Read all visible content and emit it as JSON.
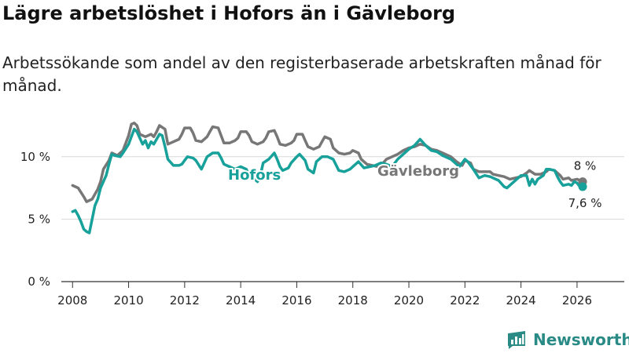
{
  "title": "Lägre arbetslöshet i Hofors än i Gävleborg",
  "subtitle": "Arbetssökande som andel av den registerbaserade arbetskraften månad för månad.",
  "brand": {
    "name": "Newsworthy",
    "logo": "bar-chart-logo-icon",
    "color": "#2a8a86"
  },
  "chart_data": {
    "type": "line",
    "title": "Lägre arbetslöshet i Hofors än i Gävleborg",
    "xlabel": "",
    "ylabel": "",
    "xlim": [
      2007.6,
      2026.9
    ],
    "ylim": [
      0,
      13
    ],
    "y_ticks": [
      0,
      5,
      10
    ],
    "y_tick_labels": [
      "0 %",
      "5 %",
      "10 %"
    ],
    "x_ticks": [
      2008,
      2010,
      2012,
      2014,
      2016,
      2018,
      2020,
      2022,
      2024,
      2026
    ],
    "x_tick_labels": [
      "2008",
      "2010",
      "2012",
      "2014",
      "2016",
      "2018",
      "2020",
      "2022",
      "2024",
      "2026"
    ],
    "grid": true,
    "series": [
      {
        "name": "Gävleborg",
        "color": "#777777",
        "label": "Gävleborg",
        "end_label": "8 %",
        "points": [
          [
            2008.0,
            7.7
          ],
          [
            2008.2,
            7.5
          ],
          [
            2008.4,
            6.8
          ],
          [
            2008.5,
            6.4
          ],
          [
            2008.7,
            6.6
          ],
          [
            2008.9,
            7.4
          ],
          [
            2009.0,
            8.0
          ],
          [
            2009.1,
            9.0
          ],
          [
            2009.3,
            9.7
          ],
          [
            2009.4,
            10.3
          ],
          [
            2009.6,
            10.1
          ],
          [
            2009.8,
            10.5
          ],
          [
            2009.9,
            11.1
          ],
          [
            2010.0,
            11.7
          ],
          [
            2010.1,
            12.6
          ],
          [
            2010.2,
            12.7
          ],
          [
            2010.3,
            12.5
          ],
          [
            2010.4,
            11.8
          ],
          [
            2010.6,
            11.6
          ],
          [
            2010.8,
            11.8
          ],
          [
            2010.9,
            11.6
          ],
          [
            2011.0,
            12.0
          ],
          [
            2011.1,
            12.5
          ],
          [
            2011.3,
            12.2
          ],
          [
            2011.4,
            11.0
          ],
          [
            2011.6,
            11.2
          ],
          [
            2011.8,
            11.4
          ],
          [
            2011.9,
            11.8
          ],
          [
            2012.0,
            12.3
          ],
          [
            2012.2,
            12.3
          ],
          [
            2012.3,
            11.9
          ],
          [
            2012.4,
            11.3
          ],
          [
            2012.6,
            11.2
          ],
          [
            2012.8,
            11.6
          ],
          [
            2012.9,
            12.0
          ],
          [
            2013.0,
            12.4
          ],
          [
            2013.2,
            12.3
          ],
          [
            2013.3,
            11.7
          ],
          [
            2013.4,
            11.1
          ],
          [
            2013.6,
            11.1
          ],
          [
            2013.8,
            11.3
          ],
          [
            2013.9,
            11.5
          ],
          [
            2014.0,
            12.0
          ],
          [
            2014.2,
            12.0
          ],
          [
            2014.3,
            11.7
          ],
          [
            2014.4,
            11.2
          ],
          [
            2014.6,
            11.0
          ],
          [
            2014.8,
            11.2
          ],
          [
            2014.9,
            11.5
          ],
          [
            2015.0,
            12.0
          ],
          [
            2015.2,
            12.1
          ],
          [
            2015.3,
            11.6
          ],
          [
            2015.4,
            11.0
          ],
          [
            2015.6,
            10.9
          ],
          [
            2015.8,
            11.1
          ],
          [
            2015.9,
            11.3
          ],
          [
            2016.0,
            11.8
          ],
          [
            2016.2,
            11.8
          ],
          [
            2016.3,
            11.3
          ],
          [
            2016.4,
            10.8
          ],
          [
            2016.6,
            10.6
          ],
          [
            2016.8,
            10.8
          ],
          [
            2016.9,
            11.2
          ],
          [
            2017.0,
            11.6
          ],
          [
            2017.2,
            11.4
          ],
          [
            2017.3,
            10.7
          ],
          [
            2017.5,
            10.3
          ],
          [
            2017.7,
            10.2
          ],
          [
            2017.9,
            10.3
          ],
          [
            2018.0,
            10.5
          ],
          [
            2018.2,
            10.3
          ],
          [
            2018.3,
            9.8
          ],
          [
            2018.5,
            9.4
          ],
          [
            2018.7,
            9.3
          ],
          [
            2018.9,
            9.2
          ],
          [
            2019.0,
            9.3
          ],
          [
            2019.2,
            9.8
          ],
          [
            2019.4,
            10.0
          ],
          [
            2019.6,
            10.2
          ],
          [
            2019.8,
            10.5
          ],
          [
            2020.0,
            10.7
          ],
          [
            2020.2,
            10.8
          ],
          [
            2020.4,
            11.0
          ],
          [
            2020.6,
            10.9
          ],
          [
            2020.8,
            10.6
          ],
          [
            2021.0,
            10.5
          ],
          [
            2021.2,
            10.3
          ],
          [
            2021.5,
            10.0
          ],
          [
            2021.7,
            9.6
          ],
          [
            2021.9,
            9.3
          ],
          [
            2022.0,
            9.7
          ],
          [
            2022.2,
            9.5
          ],
          [
            2022.3,
            9.0
          ],
          [
            2022.5,
            8.8
          ],
          [
            2022.7,
            8.8
          ],
          [
            2022.9,
            8.8
          ],
          [
            2023.0,
            8.6
          ],
          [
            2023.2,
            8.5
          ],
          [
            2023.4,
            8.4
          ],
          [
            2023.6,
            8.2
          ],
          [
            2023.8,
            8.3
          ],
          [
            2024.0,
            8.4
          ],
          [
            2024.2,
            8.7
          ],
          [
            2024.3,
            8.9
          ],
          [
            2024.5,
            8.6
          ],
          [
            2024.7,
            8.6
          ],
          [
            2024.9,
            8.8
          ],
          [
            2025.0,
            9.0
          ],
          [
            2025.2,
            8.9
          ],
          [
            2025.3,
            8.7
          ],
          [
            2025.4,
            8.5
          ],
          [
            2025.5,
            8.2
          ],
          [
            2025.7,
            8.3
          ],
          [
            2025.8,
            8.1
          ],
          [
            2026.0,
            8.2
          ],
          [
            2026.1,
            8.1
          ],
          [
            2026.2,
            8.0
          ]
        ]
      },
      {
        "name": "Hofors",
        "color": "#17a19a",
        "label": "Hofors",
        "end_label": "7,6 %",
        "points": [
          [
            2008.0,
            5.6
          ],
          [
            2008.1,
            5.7
          ],
          [
            2008.2,
            5.3
          ],
          [
            2008.3,
            4.8
          ],
          [
            2008.4,
            4.2
          ],
          [
            2008.5,
            4.0
          ],
          [
            2008.6,
            3.9
          ],
          [
            2008.7,
            5.0
          ],
          [
            2008.8,
            6.1
          ],
          [
            2008.9,
            6.6
          ],
          [
            2009.0,
            7.5
          ],
          [
            2009.2,
            8.5
          ],
          [
            2009.3,
            9.4
          ],
          [
            2009.4,
            10.2
          ],
          [
            2009.5,
            10.1
          ],
          [
            2009.7,
            10.0
          ],
          [
            2009.8,
            10.3
          ],
          [
            2010.0,
            11.0
          ],
          [
            2010.1,
            11.6
          ],
          [
            2010.2,
            12.2
          ],
          [
            2010.3,
            12.0
          ],
          [
            2010.4,
            11.5
          ],
          [
            2010.5,
            11.0
          ],
          [
            2010.6,
            11.3
          ],
          [
            2010.7,
            10.7
          ],
          [
            2010.8,
            11.2
          ],
          [
            2010.9,
            11.0
          ],
          [
            2011.1,
            11.8
          ],
          [
            2011.2,
            11.7
          ],
          [
            2011.3,
            10.8
          ],
          [
            2011.4,
            9.8
          ],
          [
            2011.6,
            9.3
          ],
          [
            2011.8,
            9.3
          ],
          [
            2011.9,
            9.4
          ],
          [
            2012.0,
            9.7
          ],
          [
            2012.1,
            10.0
          ],
          [
            2012.3,
            9.9
          ],
          [
            2012.4,
            9.7
          ],
          [
            2012.6,
            9.0
          ],
          [
            2012.8,
            10.0
          ],
          [
            2013.0,
            10.3
          ],
          [
            2013.2,
            10.3
          ],
          [
            2013.3,
            9.9
          ],
          [
            2013.4,
            9.4
          ],
          [
            2013.6,
            9.2
          ],
          [
            2013.8,
            9.0
          ],
          [
            2014.0,
            9.2
          ],
          [
            2014.2,
            9.0
          ],
          [
            2014.3,
            8.5
          ],
          [
            2014.5,
            8.2
          ],
          [
            2014.6,
            8.0
          ],
          [
            2014.7,
            8.5
          ],
          [
            2014.8,
            9.5
          ],
          [
            2015.0,
            9.8
          ],
          [
            2015.2,
            10.3
          ],
          [
            2015.3,
            9.8
          ],
          [
            2015.4,
            9.2
          ],
          [
            2015.5,
            8.9
          ],
          [
            2015.7,
            9.1
          ],
          [
            2015.8,
            9.5
          ],
          [
            2016.0,
            10.0
          ],
          [
            2016.1,
            10.2
          ],
          [
            2016.3,
            9.7
          ],
          [
            2016.4,
            9.0
          ],
          [
            2016.6,
            8.7
          ],
          [
            2016.7,
            9.6
          ],
          [
            2016.9,
            10.0
          ],
          [
            2017.1,
            10.0
          ],
          [
            2017.3,
            9.8
          ],
          [
            2017.5,
            8.9
          ],
          [
            2017.7,
            8.8
          ],
          [
            2017.9,
            9.0
          ],
          [
            2018.0,
            9.2
          ],
          [
            2018.2,
            9.6
          ],
          [
            2018.4,
            9.1
          ],
          [
            2018.6,
            9.2
          ],
          [
            2018.8,
            9.3
          ],
          [
            2019.0,
            9.5
          ],
          [
            2019.2,
            9.4
          ],
          [
            2019.4,
            9.2
          ],
          [
            2019.6,
            9.8
          ],
          [
            2019.8,
            10.2
          ],
          [
            2020.0,
            10.6
          ],
          [
            2020.2,
            10.9
          ],
          [
            2020.4,
            11.4
          ],
          [
            2020.6,
            10.9
          ],
          [
            2020.8,
            10.5
          ],
          [
            2021.0,
            10.4
          ],
          [
            2021.2,
            10.1
          ],
          [
            2021.5,
            9.8
          ],
          [
            2021.8,
            9.2
          ],
          [
            2022.0,
            9.8
          ],
          [
            2022.1,
            9.6
          ],
          [
            2022.3,
            9.0
          ],
          [
            2022.5,
            8.3
          ],
          [
            2022.7,
            8.5
          ],
          [
            2022.9,
            8.4
          ],
          [
            2023.0,
            8.3
          ],
          [
            2023.2,
            8.1
          ],
          [
            2023.4,
            7.6
          ],
          [
            2023.5,
            7.5
          ],
          [
            2023.7,
            7.9
          ],
          [
            2023.9,
            8.3
          ],
          [
            2024.0,
            8.5
          ],
          [
            2024.2,
            8.5
          ],
          [
            2024.3,
            7.7
          ],
          [
            2024.4,
            8.2
          ],
          [
            2024.5,
            7.8
          ],
          [
            2024.6,
            8.2
          ],
          [
            2024.8,
            8.5
          ],
          [
            2024.9,
            9.0
          ],
          [
            2025.0,
            9.0
          ],
          [
            2025.2,
            8.9
          ],
          [
            2025.3,
            8.4
          ],
          [
            2025.4,
            8.0
          ],
          [
            2025.5,
            7.7
          ],
          [
            2025.7,
            7.8
          ],
          [
            2025.8,
            7.7
          ],
          [
            2025.9,
            8.0
          ],
          [
            2026.0,
            7.9
          ],
          [
            2026.1,
            7.6
          ],
          [
            2026.2,
            7.6
          ]
        ]
      }
    ]
  }
}
